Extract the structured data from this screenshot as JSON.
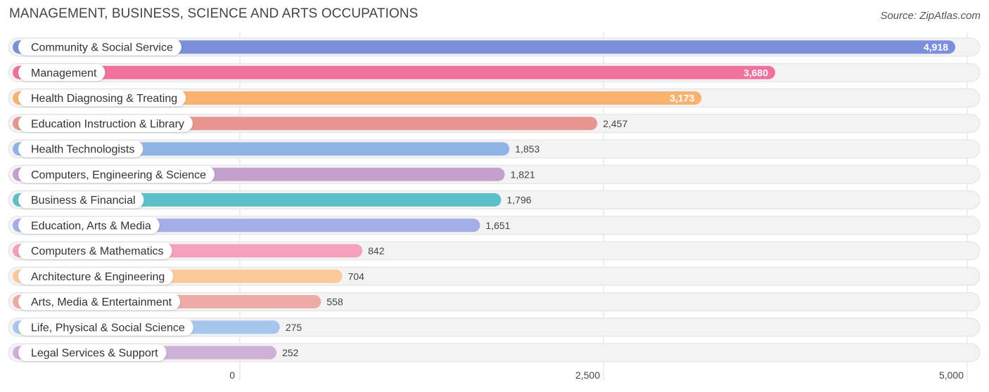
{
  "chart_data": {
    "type": "bar",
    "orientation": "horizontal",
    "title": "MANAGEMENT, BUSINESS, SCIENCE AND ARTS OCCUPATIONS",
    "source": "Source: ZipAtlas.com",
    "xlim": [
      0,
      5000
    ],
    "ticks": [
      0,
      2500,
      5000
    ],
    "tick_labels": [
      "0",
      "2,500",
      "5,000"
    ],
    "grid": true,
    "categories": [
      "Community & Social Service",
      "Management",
      "Health Diagnosing & Treating",
      "Education Instruction & Library",
      "Health Technologists",
      "Computers, Engineering & Science",
      "Business & Financial",
      "Education, Arts & Media",
      "Computers & Mathematics",
      "Architecture & Engineering",
      "Arts, Media & Entertainment",
      "Life, Physical & Social Science",
      "Legal Services & Support"
    ],
    "values": [
      4918,
      3680,
      3173,
      2457,
      1853,
      1821,
      1796,
      1651,
      842,
      704,
      558,
      275,
      252
    ],
    "value_labels": [
      "4,918",
      "3,680",
      "3,173",
      "2,457",
      "1,853",
      "1,821",
      "1,796",
      "1,651",
      "842",
      "704",
      "558",
      "275",
      "252"
    ],
    "colors": [
      "#7b8fdc",
      "#f0729c",
      "#f9b36f",
      "#e89590",
      "#8fb5e6",
      "#c4a0cc",
      "#5dbfc9",
      "#a5ade8",
      "#f5a0bd",
      "#f9c99a",
      "#eeaaa7",
      "#a7c6ee",
      "#cfb0d6"
    ]
  }
}
